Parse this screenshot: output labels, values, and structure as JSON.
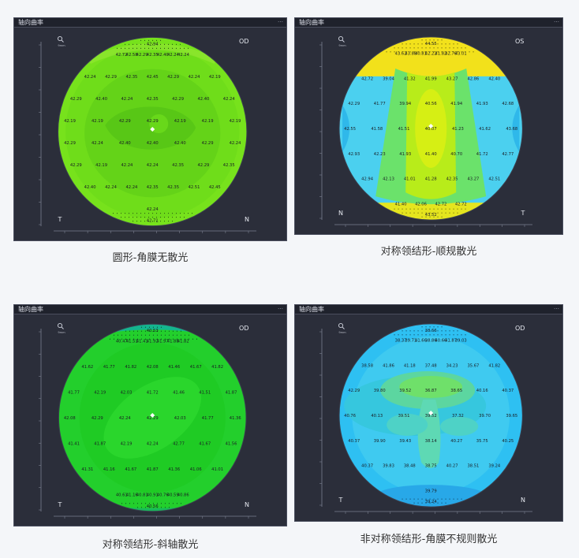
{
  "panels": [
    {
      "title": "轴向曲率",
      "eye": "OD",
      "left_mark": "T",
      "right_mark": "N",
      "zoom_label": "9mm",
      "caption": "圆形-角膜无散光",
      "theme": "round",
      "top_label": "42.94",
      "bottom_label": "42.71",
      "values": [
        "42.72",
        "42.58",
        "42.29",
        "42.35",
        "42.40",
        "42.24",
        "42.24",
        "42.24",
        "42.29",
        "42.35",
        "42.45",
        "42.29",
        "42.24",
        "42.19",
        "42.29",
        "42.40",
        "42.24",
        "42.35",
        "42.29",
        "42.40",
        "42.24",
        "42.19",
        "42.19",
        "42.29",
        "42.29",
        "42.19",
        "42.19",
        "42.19",
        "42.29",
        "42.24",
        "42.40",
        "42.40",
        "42.40",
        "42.29",
        "42.24",
        "42.29",
        "42.19",
        "42.24",
        "42.24",
        "42.35",
        "42.29",
        "42.35",
        "42.40",
        "42.24",
        "42.24",
        "42.35",
        "42.35",
        "42.51",
        "42.45",
        "42.24"
      ]
    },
    {
      "title": "轴向曲率",
      "eye": "OS",
      "left_mark": "N",
      "right_mark": "T",
      "zoom_label": "9mm",
      "caption": "对称领结形-顺规散光",
      "theme": "with_rule",
      "top_label": "44.55",
      "bottom_label": "43.52",
      "values": [
        "43.62",
        "43.88",
        "40.81",
        "42.22",
        "41.82",
        "42.76",
        "43.01",
        "42.72",
        "39.04",
        "41.32",
        "41.99",
        "43.27",
        "42.86",
        "42.40",
        "42.29",
        "41.77",
        "39.94",
        "40.56",
        "41.94",
        "41.93",
        "42.68",
        "42.55",
        "41.58",
        "41.51",
        "40.07",
        "41.23",
        "41.62",
        "43.68",
        "42.93",
        "42.23",
        "41.93",
        "41.40",
        "40.70",
        "41.72",
        "42.77",
        "42.94",
        "42.13",
        "41.01",
        "41.28",
        "42.35",
        "43.27",
        "42.51",
        "41.40",
        "42.06",
        "42.72",
        "42.72"
      ]
    },
    {
      "title": "轴向曲率",
      "eye": "OD",
      "left_mark": "T",
      "right_mark": "N",
      "zoom_label": "9mm",
      "caption": "对称领结形-斜轴散光",
      "theme": "oblique",
      "top_label": "40.53",
      "bottom_label": "40.56",
      "values": [
        "40.47",
        "41.51",
        "41.41",
        "41.92",
        "41.97",
        "41.88",
        "41.82",
        "41.62",
        "41.77",
        "41.82",
        "42.08",
        "41.46",
        "41.67",
        "41.82",
        "41.77",
        "42.19",
        "42.03",
        "41.72",
        "41.46",
        "41.51",
        "41.87",
        "42.08",
        "42.29",
        "42.24",
        "42.29",
        "42.03",
        "41.77",
        "41.36",
        "41.41",
        "41.87",
        "42.19",
        "42.24",
        "42.77",
        "41.67",
        "41.56",
        "41.31",
        "41.16",
        "41.67",
        "41.87",
        "41.36",
        "41.06",
        "41.01",
        "40.61",
        "41.16",
        "40.81",
        "40.91",
        "40.76",
        "40.59",
        "40.86"
      ]
    },
    {
      "title": "轴向曲率",
      "eye": "OD",
      "left_mark": "T",
      "right_mark": "N",
      "zoom_label": "9mm",
      "caption": "非对称领结形-角膜不规则散光",
      "theme": "irregular",
      "top_label": "38.66",
      "bottom_label": "39.24",
      "values": [
        "38.37",
        "39.71",
        "41.66",
        "38.86",
        "40.66",
        "41.87",
        "39.03",
        "38.58",
        "41.86",
        "41.18",
        "37.48",
        "34.23",
        "35.67",
        "41.82",
        "42.29",
        "39.80",
        "39.52",
        "36.87",
        "38.65",
        "40.16",
        "40.37",
        "40.76",
        "40.13",
        "39.51",
        "39.52",
        "37.32",
        "39.70",
        "39.65",
        "40.37",
        "39.90",
        "39.43",
        "38.14",
        "40.27",
        "35.75",
        "40.25",
        "40.37",
        "39.83",
        "38.48",
        "38.75",
        "40.27",
        "38.51",
        "39.24",
        "39.79"
      ]
    }
  ]
}
